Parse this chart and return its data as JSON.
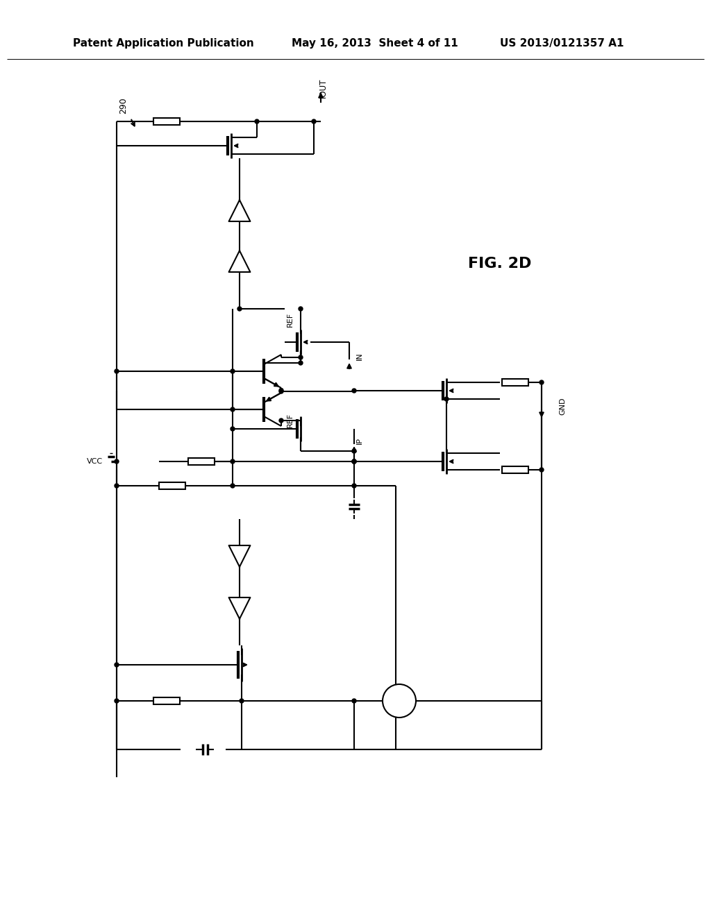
{
  "title_left": "Patent Application Publication",
  "title_mid": "May 16, 2013  Sheet 4 of 11",
  "title_right": "US 2013/0121357 A1",
  "fig_label": "FIG. 2D",
  "circuit_label": "290",
  "background": "#ffffff",
  "line_color": "#000000",
  "line_width": 1.5,
  "font_size_header": 11,
  "font_size_label": 9
}
